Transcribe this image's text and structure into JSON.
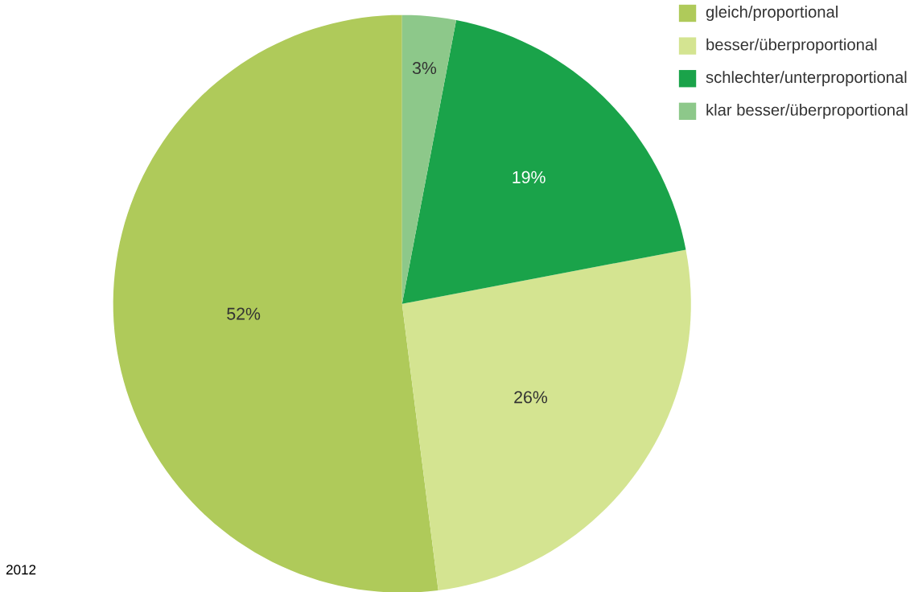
{
  "chart_data": {
    "type": "pie",
    "categories": [
      "gleich/proportional",
      "besser/überproportional",
      "schlechter/unterproportional",
      "klar besser/überproportional"
    ],
    "values": [
      52,
      26,
      19,
      3
    ],
    "colors": [
      "#afca5a",
      "#d4e491",
      "#1aa34a",
      "#8dc88a"
    ],
    "value_labels": [
      "52%",
      "26%",
      "19%",
      "3%"
    ],
    "legend": "top right",
    "annotations": [
      "2012"
    ]
  }
}
